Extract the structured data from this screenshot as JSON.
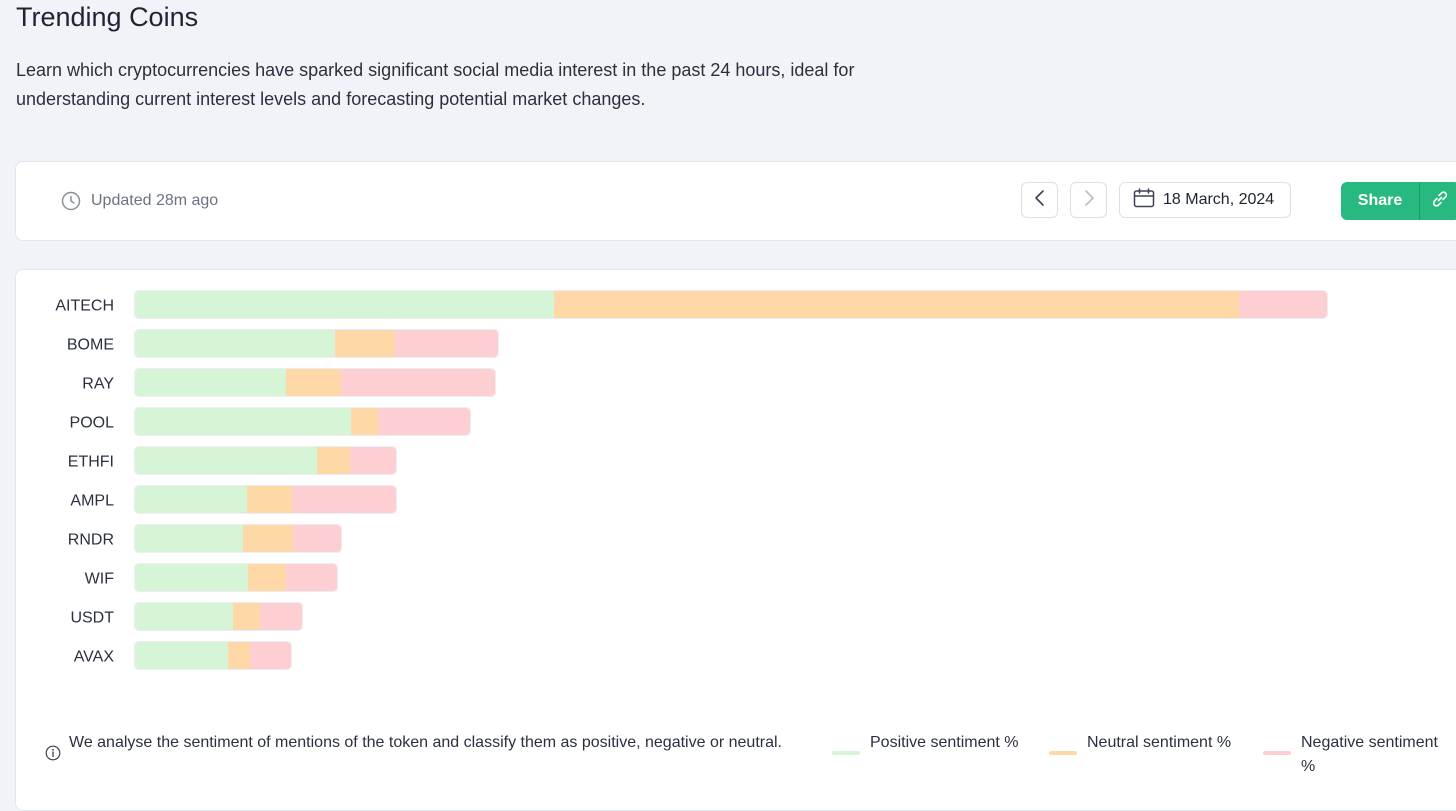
{
  "page": {
    "title": "Trending Coins",
    "description": "Learn which cryptocurrencies have sparked significant social media interest in the past 24 hours, ideal for understanding current interest levels and forecasting potential market changes."
  },
  "toolbar": {
    "updated": "Updated 28m ago",
    "date": "18 March, 2024",
    "share_label": "Share",
    "icons": {
      "clock": "clock-icon",
      "prev": "chevron-left-icon",
      "next": "chevron-right-icon",
      "calendar": "calendar-icon",
      "link": "link-icon"
    }
  },
  "colors": {
    "positive": "#d6f5d6",
    "neutral": "#ffd8a8",
    "negative": "#fdcfd2",
    "accent": "#28b981"
  },
  "chart_data": {
    "type": "bar",
    "orientation": "horizontal",
    "stacked": true,
    "categories": [
      "AITECH",
      "BOME",
      "RAY",
      "POOL",
      "ETHFI",
      "AMPL",
      "RNDR",
      "WIF",
      "USDT",
      "AVAX"
    ],
    "series": [
      {
        "name": "Positive sentiment %",
        "values": [
          420,
          201,
          152,
          217,
          183,
          113,
          109,
          114,
          99,
          94
        ]
      },
      {
        "name": "Neutral sentiment %",
        "values": [
          685,
          60,
          55,
          27,
          33,
          45,
          50,
          38,
          27,
          22
        ]
      },
      {
        "name": "Negative sentiment %",
        "values": [
          89,
          104,
          155,
          93,
          47,
          105,
          49,
          52,
          43,
          42
        ]
      }
    ]
  },
  "footer": {
    "note": "We analyse the sentiment of mentions of the token and classify them as positive, negative or neutral.",
    "legend": [
      {
        "label": "Positive sentiment %",
        "color": "#d6f5d6"
      },
      {
        "label": "Neutral sentiment %",
        "color": "#ffd8a8"
      },
      {
        "label": "Negative sentiment %",
        "color": "#fdcfd2"
      }
    ]
  }
}
